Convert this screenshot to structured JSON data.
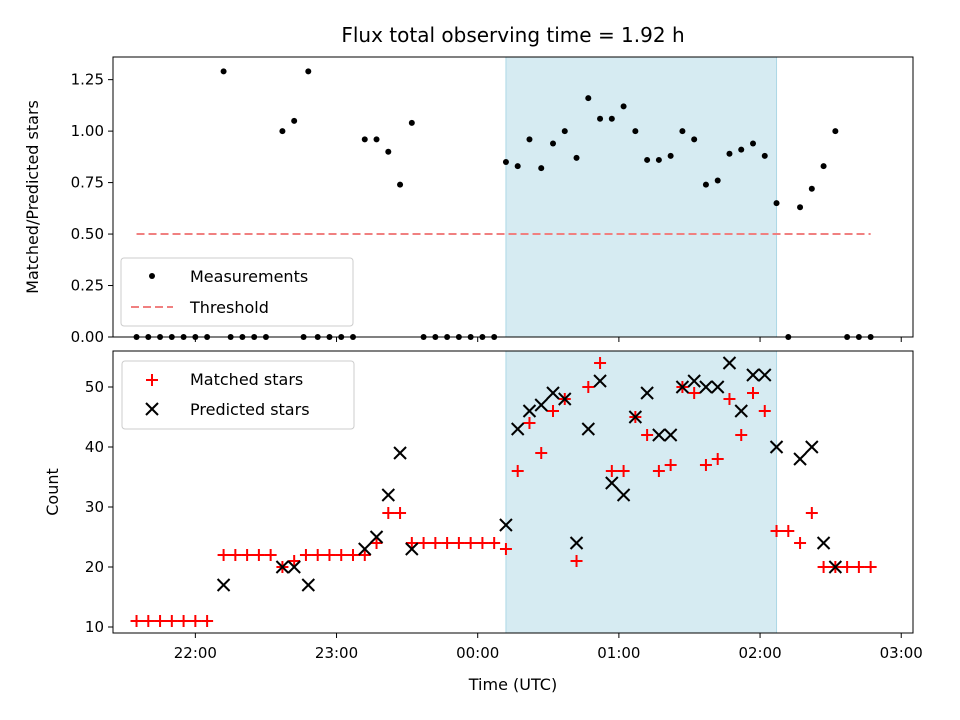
{
  "chart_data": [
    {
      "type": "scatter",
      "title": "Flux total observing time = 1.92 h",
      "ylabel": "Matched/Predicted stars",
      "xlabel": "",
      "xlim": [
        "21:25",
        "03:05"
      ],
      "ylim": [
        0,
        1.36
      ],
      "y_ticks": [
        "0.00",
        "0.25",
        "0.50",
        "0.75",
        "1.00",
        "1.25"
      ],
      "shaded_interval": [
        "00:12",
        "02:07"
      ],
      "shade_color": "#add8e6",
      "legend_position": "lower-left",
      "series": [
        {
          "name": "Measurements",
          "color": "#000000",
          "marker": "dot",
          "points": [
            [
              "21:35",
              0
            ],
            [
              "21:40",
              0
            ],
            [
              "21:45",
              0
            ],
            [
              "21:50",
              0
            ],
            [
              "21:55",
              0
            ],
            [
              "22:00",
              0
            ],
            [
              "22:05",
              0
            ],
            [
              "22:12",
              1.29
            ],
            [
              "22:15",
              0
            ],
            [
              "22:20",
              0
            ],
            [
              "22:25",
              0
            ],
            [
              "22:30",
              0
            ],
            [
              "22:37",
              1.0
            ],
            [
              "22:42",
              1.05
            ],
            [
              "22:46",
              0
            ],
            [
              "22:48",
              1.29
            ],
            [
              "22:52",
              0
            ],
            [
              "22:57",
              0
            ],
            [
              "23:02",
              0
            ],
            [
              "23:07",
              0
            ],
            [
              "23:12",
              0.96
            ],
            [
              "23:17",
              0.96
            ],
            [
              "23:22",
              0.9
            ],
            [
              "23:27",
              0.74
            ],
            [
              "23:32",
              1.04
            ],
            [
              "23:37",
              0
            ],
            [
              "23:42",
              0
            ],
            [
              "23:47",
              0
            ],
            [
              "23:52",
              0
            ],
            [
              "23:57",
              0
            ],
            [
              "00:02",
              0
            ],
            [
              "00:07",
              0
            ],
            [
              "00:12",
              0.85
            ],
            [
              "00:17",
              0.83
            ],
            [
              "00:22",
              0.96
            ],
            [
              "00:27",
              0.82
            ],
            [
              "00:32",
              0.94
            ],
            [
              "00:37",
              1.0
            ],
            [
              "00:42",
              0.87
            ],
            [
              "00:47",
              1.16
            ],
            [
              "00:52",
              1.06
            ],
            [
              "00:57",
              1.06
            ],
            [
              "01:02",
              1.12
            ],
            [
              "01:07",
              1.0
            ],
            [
              "01:12",
              0.86
            ],
            [
              "01:17",
              0.86
            ],
            [
              "01:22",
              0.88
            ],
            [
              "01:27",
              1.0
            ],
            [
              "01:32",
              0.96
            ],
            [
              "01:37",
              0.74
            ],
            [
              "01:42",
              0.76
            ],
            [
              "01:47",
              0.89
            ],
            [
              "01:52",
              0.91
            ],
            [
              "01:57",
              0.94
            ],
            [
              "02:02",
              0.88
            ],
            [
              "02:07",
              0.65
            ],
            [
              "02:12",
              0
            ],
            [
              "02:17",
              0.63
            ],
            [
              "02:22",
              0.72
            ],
            [
              "02:27",
              0.83
            ],
            [
              "02:32",
              1.0
            ],
            [
              "02:37",
              0
            ],
            [
              "02:42",
              0
            ],
            [
              "02:47",
              0
            ]
          ]
        },
        {
          "name": "Threshold",
          "color": "#f08080",
          "style": "dashed",
          "points": [
            [
              "21:35",
              0.5
            ],
            [
              "02:47",
              0.5
            ]
          ]
        }
      ]
    },
    {
      "type": "scatter",
      "title": "",
      "xlabel": "Time (UTC)",
      "ylabel": "Count",
      "xlim": [
        "21:25",
        "03:05"
      ],
      "ylim": [
        9,
        56
      ],
      "x_ticks": [
        "22:00",
        "23:00",
        "00:00",
        "01:00",
        "02:00",
        "03:00"
      ],
      "y_ticks": [
        "10",
        "20",
        "30",
        "40",
        "50"
      ],
      "shaded_interval": [
        "00:12",
        "02:07"
      ],
      "shade_color": "#add8e6",
      "legend_position": "upper-left",
      "series": [
        {
          "name": "Matched stars",
          "color": "#ff0000",
          "marker": "plus",
          "points": [
            [
              "21:35",
              11
            ],
            [
              "21:40",
              11
            ],
            [
              "21:45",
              11
            ],
            [
              "21:50",
              11
            ],
            [
              "21:55",
              11
            ],
            [
              "22:00",
              11
            ],
            [
              "22:05",
              11
            ],
            [
              "22:12",
              22
            ],
            [
              "22:17",
              22
            ],
            [
              "22:22",
              22
            ],
            [
              "22:27",
              22
            ],
            [
              "22:32",
              22
            ],
            [
              "22:37",
              20
            ],
            [
              "22:42",
              21
            ],
            [
              "22:47",
              22
            ],
            [
              "22:52",
              22
            ],
            [
              "22:57",
              22
            ],
            [
              "23:02",
              22
            ],
            [
              "23:07",
              22
            ],
            [
              "23:12",
              22
            ],
            [
              "23:17",
              24
            ],
            [
              "23:22",
              29
            ],
            [
              "23:27",
              29
            ],
            [
              "23:32",
              24
            ],
            [
              "23:37",
              24
            ],
            [
              "23:42",
              24
            ],
            [
              "23:47",
              24
            ],
            [
              "23:52",
              24
            ],
            [
              "23:57",
              24
            ],
            [
              "00:02",
              24
            ],
            [
              "00:07",
              24
            ],
            [
              "00:12",
              23
            ],
            [
              "00:17",
              36
            ],
            [
              "00:22",
              44
            ],
            [
              "00:27",
              39
            ],
            [
              "00:32",
              46
            ],
            [
              "00:37",
              48
            ],
            [
              "00:42",
              21
            ],
            [
              "00:47",
              50
            ],
            [
              "00:52",
              54
            ],
            [
              "00:57",
              36
            ],
            [
              "01:02",
              36
            ],
            [
              "01:07",
              45
            ],
            [
              "01:12",
              42
            ],
            [
              "01:17",
              36
            ],
            [
              "01:22",
              37
            ],
            [
              "01:27",
              50
            ],
            [
              "01:32",
              49
            ],
            [
              "01:37",
              37
            ],
            [
              "01:42",
              38
            ],
            [
              "01:47",
              48
            ],
            [
              "01:52",
              42
            ],
            [
              "01:57",
              49
            ],
            [
              "02:02",
              46
            ],
            [
              "02:07",
              26
            ],
            [
              "02:12",
              26
            ],
            [
              "02:17",
              24
            ],
            [
              "02:22",
              29
            ],
            [
              "02:27",
              20
            ],
            [
              "02:32",
              20
            ],
            [
              "02:37",
              20
            ],
            [
              "02:42",
              20
            ],
            [
              "02:47",
              20
            ]
          ]
        },
        {
          "name": "Predicted stars",
          "color": "#000000",
          "marker": "x",
          "points": [
            [
              "22:12",
              17
            ],
            [
              "22:37",
              20
            ],
            [
              "22:42",
              20
            ],
            [
              "22:48",
              17
            ],
            [
              "23:12",
              23
            ],
            [
              "23:17",
              25
            ],
            [
              "23:22",
              32
            ],
            [
              "23:27",
              39
            ],
            [
              "23:32",
              23
            ],
            [
              "00:12",
              27
            ],
            [
              "00:17",
              43
            ],
            [
              "00:22",
              46
            ],
            [
              "00:27",
              47
            ],
            [
              "00:32",
              49
            ],
            [
              "00:37",
              48
            ],
            [
              "00:42",
              24
            ],
            [
              "00:47",
              43
            ],
            [
              "00:52",
              51
            ],
            [
              "00:57",
              34
            ],
            [
              "01:02",
              32
            ],
            [
              "01:07",
              45
            ],
            [
              "01:12",
              49
            ],
            [
              "01:17",
              42
            ],
            [
              "01:22",
              42
            ],
            [
              "01:27",
              50
            ],
            [
              "01:32",
              51
            ],
            [
              "01:37",
              50
            ],
            [
              "01:42",
              50
            ],
            [
              "01:47",
              54
            ],
            [
              "01:52",
              46
            ],
            [
              "01:57",
              52
            ],
            [
              "02:02",
              52
            ],
            [
              "02:07",
              40
            ],
            [
              "02:17",
              38
            ],
            [
              "02:22",
              40
            ],
            [
              "02:27",
              24
            ],
            [
              "02:32",
              20
            ]
          ]
        }
      ]
    }
  ]
}
